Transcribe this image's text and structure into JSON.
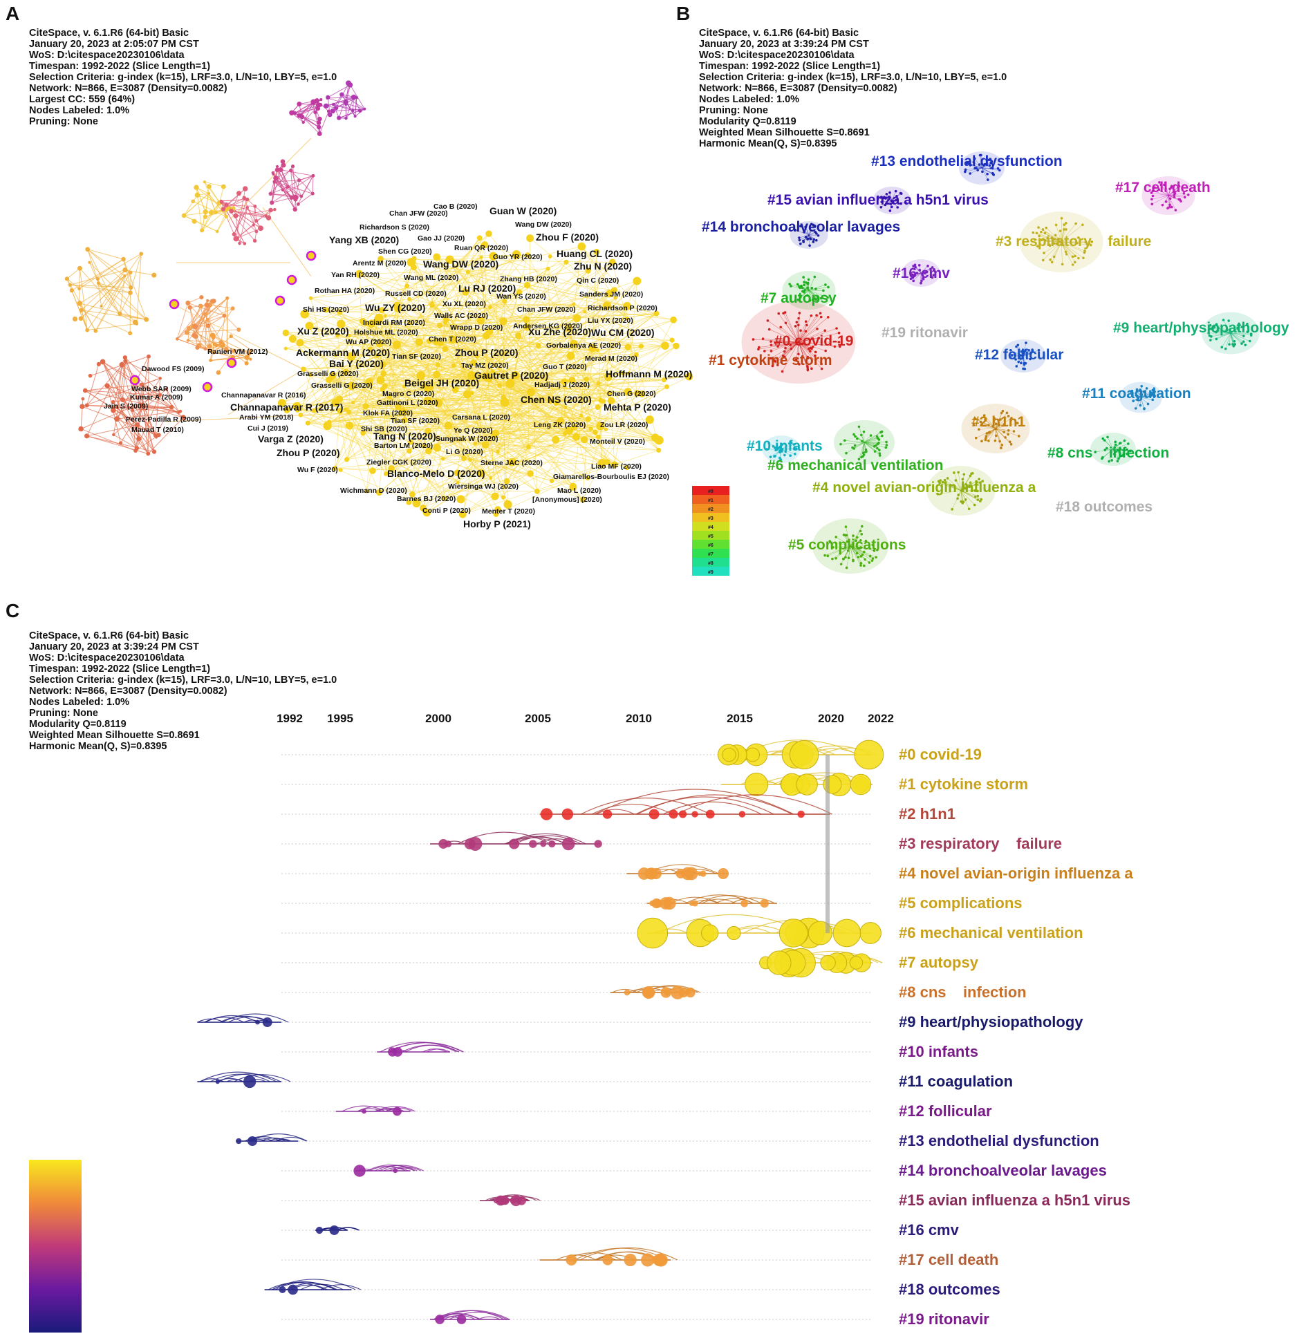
{
  "panels": {
    "a": {
      "letter": "A",
      "meta": [
        "CiteSpace, v. 6.1.R6 (64-bit) Basic",
        "January 20, 2023 at 2:05:07 PM CST",
        "WoS: D:\\citespace20230106\\data",
        "Timespan: 1992-2022 (Slice Length=1)",
        "Selection Criteria: g-index (k=15), LRF=3.0, L/N=10, LBY=5, e=1.0",
        "Network: N=866, E=3087 (Density=0.0082)",
        "Largest CC: 559 (64%)",
        "Nodes Labeled: 1.0%",
        "Pruning: None"
      ],
      "labels": [
        {
          "text": "Cao B (2020)",
          "big": false
        },
        {
          "text": "Guan W (2020)",
          "big": true
        },
        {
          "text": "Chan JFW (2020)",
          "big": false
        },
        {
          "text": "Wang DW (2020)",
          "big": false
        },
        {
          "text": "Richardson S (2020)",
          "big": false
        },
        {
          "text": "Zhou F (2020)",
          "big": true
        },
        {
          "text": "Gao JJ (2020)",
          "big": false
        },
        {
          "text": "Yang XB (2020)",
          "big": true
        },
        {
          "text": "Ruan QR (2020)",
          "big": false
        },
        {
          "text": "Shen CG (2020)",
          "big": false
        },
        {
          "text": "Huang CL (2020)",
          "big": true
        },
        {
          "text": "Guo YR (2020)",
          "big": false
        },
        {
          "text": "Arentz M (2020)",
          "big": false
        },
        {
          "text": "Wang DW (2020)",
          "big": true
        },
        {
          "text": "Zhu N (2020)",
          "big": true
        },
        {
          "text": "Zhang HB (2020)",
          "big": false
        },
        {
          "text": "Yan RH (2020)",
          "big": false
        },
        {
          "text": "Wang ML (2020)",
          "big": false
        },
        {
          "text": "Qin C (2020)",
          "big": false
        },
        {
          "text": "Lu RJ (2020)",
          "big": true
        },
        {
          "text": "Rothan HA (2020)",
          "big": false
        },
        {
          "text": "Russell CD (2020)",
          "big": false
        },
        {
          "text": "Wan YS (2020)",
          "big": false
        },
        {
          "text": "Sanders JM (2020)",
          "big": false
        },
        {
          "text": "Xu XL (2020)",
          "big": false
        },
        {
          "text": "Shi HS (2020)",
          "big": false
        },
        {
          "text": "Wu ZY (2020)",
          "big": true
        },
        {
          "text": "Chan JFW (2020)",
          "big": false
        },
        {
          "text": "Richardson P (2020)",
          "big": false
        },
        {
          "text": "Walls AC (2020)",
          "big": false
        },
        {
          "text": "Liu YX (2020)",
          "big": false
        },
        {
          "text": "Inciardi RM (2020)",
          "big": false
        },
        {
          "text": "Wrapp D (2020)",
          "big": false
        },
        {
          "text": "Andersen KG (2020)",
          "big": false
        },
        {
          "text": "Holshue ML (2020)",
          "big": false
        },
        {
          "text": "Xu Z (2020)",
          "big": true
        },
        {
          "text": "Xu Zhe (2020)",
          "big": true
        },
        {
          "text": "Wu CM (2020)",
          "big": true
        },
        {
          "text": "Wu AP (2020)",
          "big": false
        },
        {
          "text": "Chen T (2020)",
          "big": false
        },
        {
          "text": "Gorbalenya AE (2020)",
          "big": false
        },
        {
          "text": "Ranieri VM (2012)",
          "big": false
        },
        {
          "text": "Ackermann M (2020)",
          "big": true
        },
        {
          "text": "Zhou P (2020)",
          "big": true
        },
        {
          "text": "Tian SF (2020)",
          "big": false
        },
        {
          "text": "Merad M (2020)",
          "big": false
        },
        {
          "text": "Bai Y (2020)",
          "big": true
        },
        {
          "text": "Tay MZ (2020)",
          "big": false
        },
        {
          "text": "Guo T (2020)",
          "big": false
        },
        {
          "text": "Dawood FS (2009)",
          "big": false
        },
        {
          "text": "Grasselli G (2020)",
          "big": false
        },
        {
          "text": "Gautret P (2020)",
          "big": true
        },
        {
          "text": "Hoffmann M (2020)",
          "big": true
        },
        {
          "text": "Grasselli G (2020)",
          "big": false
        },
        {
          "text": "Beigel JH (2020)",
          "big": true
        },
        {
          "text": "Hadjadj J (2020)",
          "big": false
        },
        {
          "text": "Webb SAR (2009)",
          "big": false
        },
        {
          "text": "Kumar A (2009)",
          "big": false
        },
        {
          "text": "Channapanavar R (2016)",
          "big": false
        },
        {
          "text": "Magro C (2020)",
          "big": false
        },
        {
          "text": "Chen G (2020)",
          "big": false
        },
        {
          "text": "Jain S (2009)",
          "big": false
        },
        {
          "text": "Gattinoni L (2020)",
          "big": false
        },
        {
          "text": "Chen NS (2020)",
          "big": true
        },
        {
          "text": "Channapanavar R (2017)",
          "big": true
        },
        {
          "text": "Klok FA (2020)",
          "big": false
        },
        {
          "text": "Mehta P (2020)",
          "big": true
        },
        {
          "text": "Arabi YM (2018)",
          "big": false
        },
        {
          "text": "Carsana L (2020)",
          "big": false
        },
        {
          "text": "Perez-Padilla R (2009)",
          "big": false
        },
        {
          "text": "Tian SF (2020)",
          "big": false
        },
        {
          "text": "Leng ZK (2020)",
          "big": false
        },
        {
          "text": "Cui J (2019)",
          "big": false
        },
        {
          "text": "Shi SB (2020)",
          "big": false
        },
        {
          "text": "Ye Q (2020)",
          "big": false
        },
        {
          "text": "Zou LR (2020)",
          "big": false
        },
        {
          "text": "Mauad T (2010)",
          "big": false
        },
        {
          "text": "Tang N (2020)",
          "big": true
        },
        {
          "text": "Sungnak W (2020)",
          "big": false
        },
        {
          "text": "Varga Z (2020)",
          "big": true
        },
        {
          "text": "Barton LM (2020)",
          "big": false
        },
        {
          "text": "Monteil V (2020)",
          "big": false
        },
        {
          "text": "Zhou P (2020)",
          "big": true
        },
        {
          "text": "Li G (2020)",
          "big": false
        },
        {
          "text": "Ziegler CGK (2020)",
          "big": false
        },
        {
          "text": "Sterne JAC (2020)",
          "big": false
        },
        {
          "text": "Liao MF (2020)",
          "big": false
        },
        {
          "text": "Wu F (2020)",
          "big": false
        },
        {
          "text": "Blanco-Melo D (2020)",
          "big": true
        },
        {
          "text": "Giamarellos-Bourboulis EJ (2020)",
          "big": false
        },
        {
          "text": "Wiersinga WJ (2020)",
          "big": false
        },
        {
          "text": "Wichmann D (2020)",
          "big": false
        },
        {
          "text": "Mao L (2020)",
          "big": false
        },
        {
          "text": "Barnes BJ (2020)",
          "big": false
        },
        {
          "text": "[Anonymous] (2020)",
          "big": false
        },
        {
          "text": "Conti P (2020)",
          "big": false
        },
        {
          "text": "Menter T (2020)",
          "big": false
        },
        {
          "text": "Horby P (2021)",
          "big": true
        }
      ]
    },
    "b": {
      "letter": "B",
      "meta": [
        "CiteSpace, v. 6.1.R6 (64-bit) Basic",
        "January 20, 2023 at 3:39:24 PM CST",
        "WoS: D:\\citespace20230106\\data",
        "Timespan: 1992-2022 (Slice Length=1)",
        "Selection Criteria: g-index (k=15), LRF=3.0, L/N=10, LBY=5, e=1.0",
        "Network: N=866, E=3087 (Density=0.0082)",
        "Nodes Labeled: 1.0%",
        "Pruning: None",
        "Modularity Q=0.8119",
        "Weighted Mean Silhouette S=0.8691",
        "Harmonic Mean(Q, S)=0.8395"
      ],
      "clusters": [
        {
          "text": "#13 endothelial dysfunction",
          "color": "#1a2fc0"
        },
        {
          "text": "#17 cell death",
          "color": "#c020b8"
        },
        {
          "text": "#15 avian influenza a h5n1 virus",
          "color": "#3a10b0"
        },
        {
          "text": "#14 bronchoalveolar lavages",
          "color": "#1a20a0"
        },
        {
          "text": "#3 respiratory    failure",
          "color": "#c0b020"
        },
        {
          "text": "#16 cmv",
          "color": "#7a20c0"
        },
        {
          "text": "#7 autopsy",
          "color": "#20b020"
        },
        {
          "text": "#19 ritonavir",
          "color": "#b0b0b0"
        },
        {
          "text": "#9 heart/physiopathology",
          "color": "#10b070"
        },
        {
          "text": "#0 covid-19",
          "color": "#d02020"
        },
        {
          "text": "#12 follicular",
          "color": "#1a50c0"
        },
        {
          "text": "#1 cytokine storm",
          "color": "#c04010"
        },
        {
          "text": "#11 coagulation",
          "color": "#1a80c0"
        },
        {
          "text": "#2 h1n1",
          "color": "#c08010"
        },
        {
          "text": "#10 infants",
          "color": "#10b0c0"
        },
        {
          "text": "#8 cns    infection",
          "color": "#10b040"
        },
        {
          "text": "#6 mechanical ventilation",
          "color": "#30b020"
        },
        {
          "text": "#4 novel avian-origin influenza a",
          "color": "#90b010"
        },
        {
          "text": "#18 outcomes",
          "color": "#b0b0b0"
        },
        {
          "text": "#5 complications",
          "color": "#50b010"
        }
      ],
      "legend": [
        "#0",
        "#1",
        "#2",
        "#3",
        "#4",
        "#5",
        "#6",
        "#7",
        "#8",
        "#9"
      ]
    },
    "c": {
      "letter": "C",
      "meta": [
        "CiteSpace, v. 6.1.R6 (64-bit) Basic",
        "January 20, 2023 at 3:39:24 PM CST",
        "WoS: D:\\citespace20230106\\data",
        "Timespan: 1992-2022 (Slice Length=1)",
        "Selection Criteria: g-index (k=15), LRF=3.0, L/N=10, LBY=5, e=1.0",
        "Network: N=866, E=3087 (Density=0.0082)",
        "Nodes Labeled: 1.0%",
        "Pruning: None",
        "Modularity Q=0.8119",
        "Weighted Mean Silhouette S=0.8691",
        "Harmonic Mean(Q, S)=0.8395"
      ],
      "years": [
        "1992",
        "1995",
        "2000",
        "2005",
        "2010",
        "2015",
        "2020",
        "2022"
      ],
      "rows": [
        {
          "label": "#0 covid-19",
          "color": "#c9a21a",
          "start": 2014.5,
          "end": 2022,
          "tone": "y"
        },
        {
          "label": "#1 cytokine storm",
          "color": "#c9a21a",
          "start": 2014.5,
          "end": 2022,
          "tone": "y"
        },
        {
          "label": "#2 h1n1",
          "color": "#b2483a",
          "start": 2005.5,
          "end": 2020.3,
          "tone": "r"
        },
        {
          "label": "#3 respiratory    failure",
          "color": "#a23a5a",
          "start": 2000,
          "end": 2008.5,
          "tone": "m"
        },
        {
          "label": "#4 novel avian-origin influenza a",
          "color": "#c9801a",
          "start": 2009.8,
          "end": 2014.8,
          "tone": "o"
        },
        {
          "label": "#5 complications",
          "color": "#c9a21a",
          "start": 2010.8,
          "end": 2017.5,
          "tone": "o"
        },
        {
          "label": "#6 mechanical ventilation",
          "color": "#c9a21a",
          "start": 2010.8,
          "end": 2022,
          "tone": "y"
        },
        {
          "label": "#7 autopsy",
          "color": "#c9a21a",
          "start": 2016.7,
          "end": 2022,
          "tone": "y"
        },
        {
          "label": "#8 cns    infection",
          "color": "#c9702a",
          "start": 2009,
          "end": 2013,
          "tone": "o"
        },
        {
          "label": "#9 heart/physiopathology",
          "color": "#1a1a6a",
          "start": 1987,
          "end": 1992,
          "tone": "b"
        },
        {
          "label": "#10 infants",
          "color": "#7a1a8a",
          "start": 1997.3,
          "end": 2001,
          "tone": "p"
        },
        {
          "label": "#11 coagulation",
          "color": "#1a1a6a",
          "start": 1987,
          "end": 1992,
          "tone": "b"
        },
        {
          "label": "#12 follicular",
          "color": "#7a1a8a",
          "start": 1995.2,
          "end": 1999,
          "tone": "p"
        },
        {
          "label": "#13 endothelial dysfunction",
          "color": "#2a1a7a",
          "start": 1989.3,
          "end": 1993,
          "tone": "b"
        },
        {
          "label": "#14 bronchoalveolar lavages",
          "color": "#6a1a8a",
          "start": 1996.2,
          "end": 1999,
          "tone": "p"
        },
        {
          "label": "#15 avian influenza a h5n1 virus",
          "color": "#8a2a5a",
          "start": 2002.5,
          "end": 2005,
          "tone": "m"
        },
        {
          "label": "#16 cmv",
          "color": "#2a1a7a",
          "start": 1994,
          "end": 1995.8,
          "tone": "b"
        },
        {
          "label": "#17 cell death",
          "color": "#b2603a",
          "start": 2005.5,
          "end": 2012,
          "tone": "o"
        },
        {
          "label": "#18 outcomes",
          "color": "#2a1a7a",
          "start": 1991,
          "end": 1996,
          "tone": "b"
        },
        {
          "label": "#19 ritonavir",
          "color": "#7a1a8a",
          "start": 2000,
          "end": 2004,
          "tone": "p"
        }
      ]
    }
  }
}
